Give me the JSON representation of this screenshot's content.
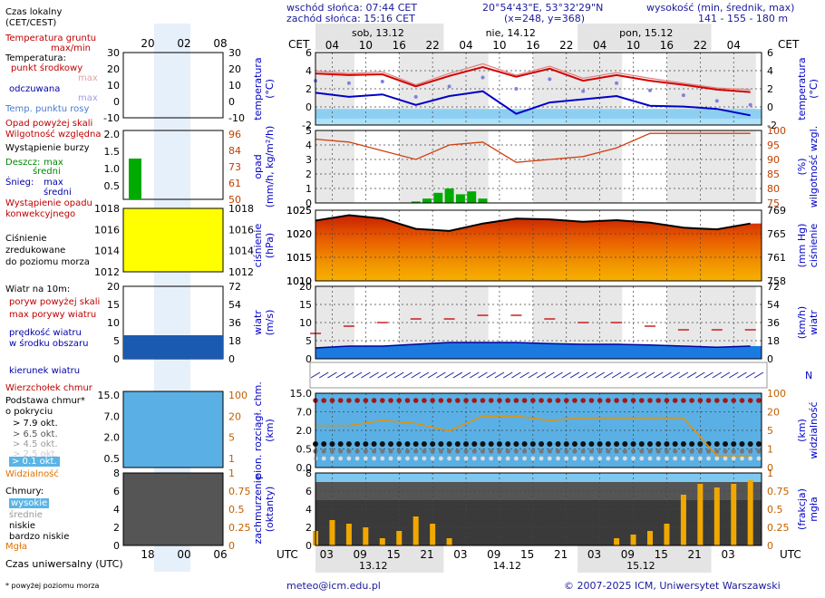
{
  "header": {
    "sunrise": "wschód słońca: 07:44 CET",
    "sunset": "zachód słońca: 15:16 CET",
    "coords": "20°54'43\"E, 53°32'29\"N",
    "grid": "(x=248,  y=368)",
    "alt_title": "wysokość (min, średnik, max)",
    "alt_values": "141 - 155 - 180 m",
    "tz_left": "CET",
    "tz_right": "CET",
    "utc_left": "UTC",
    "utc_right": "UTC"
  },
  "days_top": [
    "sob, 13.12",
    "nie, 14.12",
    "pon, 15.12"
  ],
  "days_bottom": [
    "13.12",
    "14.12",
    "15.12"
  ],
  "hours_top": [
    "04",
    "10",
    "16",
    "22",
    "04",
    "10",
    "16",
    "22",
    "04",
    "10",
    "16",
    "22",
    "04"
  ],
  "hours_bottom": [
    "03",
    "09",
    "15",
    "21",
    "03",
    "09",
    "15",
    "21",
    "03",
    "09",
    "15",
    "21",
    "03"
  ],
  "legend": {
    "local_time": "Czas lokalny\n(CET/CEST)",
    "local_ticks": [
      "20",
      "02",
      "08"
    ],
    "utc_label": "Czas uniwersalny (UTC)",
    "utc_ticks": [
      "18",
      "00",
      "06"
    ],
    "footnote": "* powyżej poziomu morza",
    "ground_temp": "Temperatura gruntu",
    "ground_temp2": "max/min",
    "temp_label": "Temperatura:",
    "temp_mid": "punkt środkowy",
    "temp_max": "max",
    "temp_min": "min",
    "apparent": "odczuwana",
    "app_max": "max",
    "app_min": "min",
    "dew": "Temp. punktu rosy",
    "precip_over": "Opad powyżej skali",
    "humidity": "Wilgotność względna",
    "storm": "Wystąpienie burzy",
    "rain": "Deszcz:",
    "rain_max": "max",
    "rain_avg": "średni",
    "snow": "Śnieg:",
    "snow_max": "max",
    "snow_avg": "średni",
    "precip_conv": "Wystąpienie opadu\nkonwekcyjnego",
    "pressure": "Ciśnienie\nzredukowane\ndo poziomu morza",
    "wind10": "Wiatr na 10m:",
    "gust_over": "poryw powyżej skali",
    "gust_max": "max porywy wiatru",
    "wind_speed": "prędkość wiatru\nw środku obszaru",
    "wind_dir": "kierunek wiatru",
    "cloud_top": "Wierzchołek chmur",
    "cloud_base": "Podstawa chmur*\no pokryciu",
    "okt79": "> 7.9 okt.",
    "okt65": "> 6.5 okt.",
    "okt45": "> 4.5 okt.",
    "okt25": "> 2.5 okt.",
    "okt01": "> 0.1 okt.",
    "visibility": "Widzialność",
    "clouds": "Chmury:",
    "high": "wysokie",
    "mid": "średnie",
    "low": "niskie",
    "vlow": "bardzo niskie",
    "fog": "Mgła"
  },
  "panels": {
    "temp": {
      "ylabel_left": "temperatura\n(°C)",
      "ylabel_right": "temperatura\n(°C)",
      "ticks": [
        "6",
        "4",
        "2",
        "0",
        "-2"
      ]
    },
    "precip": {
      "ylabel_left": "opad\n(mm/h, kg/m²/h)",
      "ylabel_right": "(%)\nwilgotność wzgl.",
      "ticks_left": [
        "5",
        "4",
        "3",
        "2",
        "1",
        "0"
      ],
      "ticks_right": [
        "100",
        "95",
        "90",
        "85",
        "80",
        "75"
      ]
    },
    "pressure": {
      "ylabel_left": "ciśnienie\n(hPa)",
      "ylabel_right": "(mm Hg)\nciśnienie",
      "ticks_left": [
        "1025",
        "1020",
        "1015",
        "1010"
      ],
      "ticks_right": [
        "769",
        "765",
        "761",
        "758"
      ]
    },
    "wind": {
      "ylabel_left": "wiatr\n(m/s)",
      "ylabel_right": "(km/h)\nwiatr",
      "ticks_left": [
        "20",
        "15",
        "10",
        "5",
        "0"
      ],
      "ticks_right": [
        "72",
        "54",
        "36",
        "18",
        "0"
      ]
    },
    "clouds": {
      "ylabel_left": "pion. rozciągł. chm.\n(km)",
      "ylabel_right": "(km)\nwidzialność",
      "ticks_left": [
        "15.0",
        "7.0",
        "2.0",
        "0.5",
        "0.0"
      ],
      "ticks_right": [
        "100",
        "20",
        "5",
        "1",
        "0"
      ]
    },
    "cover": {
      "ylabel_left": "zachmurzenie\n(oktanty)",
      "ylabel_right": "(frakcja)\nmgła",
      "ticks_left": [
        "8",
        "6",
        "4",
        "2",
        "0"
      ],
      "ticks_right": [
        "1",
        "0.75",
        "0.5",
        "0.25",
        "0"
      ]
    }
  },
  "legend_panel_ticks": {
    "temp_left": [
      "30",
      "20",
      "10",
      "0",
      "-10"
    ],
    "temp_right": [
      "30",
      "20",
      "10",
      "0",
      "-10"
    ],
    "precip_left": [
      "2.0",
      "1.5",
      "1.0",
      "0.5"
    ],
    "precip_right": [
      "96",
      "84",
      "73",
      "61",
      "50"
    ],
    "press_left": [
      "1018",
      "1016",
      "1014",
      "1012"
    ],
    "press_right": [
      "1018",
      "1016",
      "1014",
      "1012"
    ],
    "wind_left": [
      "20",
      "15",
      "10",
      "5",
      "0"
    ],
    "wind_right": [
      "72",
      "54",
      "36",
      "18",
      "0"
    ],
    "cloud_left": [
      "15.0",
      "7.0",
      "2.0",
      "0.5"
    ],
    "cloud_right": [
      "100",
      "20",
      "5",
      "1"
    ],
    "cover_left": [
      "8",
      "6",
      "4",
      "2",
      "0"
    ],
    "cover_right": [
      "1",
      "0.75",
      "0.5",
      "0.25",
      "0"
    ]
  },
  "footer": {
    "email": "meteo@icm.edu.pl",
    "copyright": "© 2007-2025 ICM, Uniwersytet Warszawski"
  },
  "colors": {
    "red": "#d40000",
    "blue": "#0000c8",
    "green": "#00aa00",
    "orange": "#e89000",
    "sky": "#7cc8f0",
    "dark": "#333333"
  },
  "chart_data": [
    {
      "type": "line",
      "title": "temperatura",
      "ylabel": "(°C)",
      "ylim": [
        -2,
        7
      ],
      "x_hours": [
        0,
        6,
        12,
        18,
        24,
        30,
        36,
        42,
        48,
        54,
        60,
        66,
        72,
        78
      ],
      "series": [
        {
          "name": "max",
          "values": [
            4.7,
            4.4,
            4.6,
            3.0,
            4.4,
            5.6,
            4.2,
            5.3,
            3.8,
            4.5,
            3.8,
            3.2,
            2.6,
            2.4
          ]
        },
        {
          "name": "punkt środkowy",
          "values": [
            4.4,
            4.2,
            4.3,
            2.8,
            4.1,
            5.2,
            4.0,
            5.0,
            3.5,
            4.2,
            3.5,
            3.0,
            2.4,
            2.1
          ]
        },
        {
          "name": "odczuwana",
          "values": [
            3.5,
            3.2,
            3.4,
            1.5,
            2.8,
            3.9,
            2.5,
            3.7,
            2.2,
            3.2,
            2.3,
            1.7,
            1.0,
            0.5
          ]
        },
        {
          "name": "Temp. punktu rosy",
          "values": [
            2.0,
            1.5,
            1.8,
            0.5,
            1.6,
            2.2,
            -0.6,
            0.8,
            1.2,
            1.6,
            0.4,
            0.3,
            0.0,
            -0.8
          ]
        }
      ]
    },
    {
      "type": "line",
      "title": "wilgotność względna",
      "ylabel": "(%)",
      "ylim": [
        75,
        100
      ],
      "x_hours": [
        0,
        6,
        12,
        18,
        24,
        30,
        36,
        42,
        48,
        54,
        60,
        66,
        72,
        78
      ],
      "values": [
        97,
        96,
        93,
        90,
        95,
        96,
        89,
        90,
        91,
        94,
        99,
        99,
        99,
        99
      ]
    },
    {
      "type": "bar",
      "title": "opad",
      "ylabel": "(mm/h)",
      "ylim": [
        0,
        5
      ],
      "x_hours": [
        18,
        20,
        22,
        24,
        26,
        28,
        30
      ],
      "values": [
        0.1,
        0.3,
        0.7,
        1.0,
        0.6,
        0.8,
        0.3
      ]
    },
    {
      "type": "line",
      "title": "ciśnienie",
      "ylabel": "(hPa)",
      "ylim": [
        1010,
        1027
      ],
      "x_hours": [
        0,
        6,
        12,
        18,
        24,
        30,
        36,
        42,
        48,
        54,
        60,
        66,
        72,
        78
      ],
      "values": [
        1024.5,
        1025.8,
        1025.0,
        1022.5,
        1022.0,
        1023.8,
        1025.0,
        1024.8,
        1024.2,
        1024.6,
        1024.0,
        1022.8,
        1022.4,
        1023.8
      ]
    },
    {
      "type": "line",
      "title": "wiatr",
      "ylabel": "(m/s)",
      "ylim": [
        0,
        20
      ],
      "x_hours": [
        0,
        6,
        12,
        18,
        24,
        30,
        36,
        42,
        48,
        54,
        60,
        66,
        72,
        78
      ],
      "series": [
        {
          "name": "max porywy wiatru",
          "values": [
            7,
            9,
            10,
            11,
            11,
            12,
            12,
            11,
            10,
            10,
            9,
            8,
            8,
            8
          ]
        },
        {
          "name": "prędkość wiatru",
          "values": [
            3,
            3.5,
            3.5,
            4,
            4.5,
            4.5,
            4.5,
            4.2,
            4,
            4,
            3.8,
            3.5,
            3.2,
            3.5
          ]
        }
      ]
    },
    {
      "type": "line",
      "title": "widzialność",
      "ylabel": "(km)",
      "x_hours": [
        0,
        6,
        12,
        18,
        24,
        30,
        36,
        42,
        48,
        54,
        60,
        66,
        72,
        78
      ],
      "values": [
        5,
        5,
        8,
        6,
        3,
        12,
        12,
        8,
        10,
        10,
        10,
        10,
        0.3,
        0.3
      ]
    },
    {
      "type": "bar",
      "title": "mgła",
      "ylabel": "(frakcja)",
      "ylim": [
        0,
        1
      ],
      "x_hours": [
        0,
        3,
        6,
        9,
        12,
        15,
        18,
        21,
        24,
        54,
        57,
        60,
        63,
        66,
        69,
        72,
        75,
        78
      ],
      "values": [
        0.2,
        0.35,
        0.3,
        0.25,
        0.1,
        0.2,
        0.4,
        0.3,
        0.1,
        0.1,
        0.15,
        0.2,
        0.3,
        0.7,
        0.85,
        0.8,
        0.85,
        0.9
      ]
    }
  ]
}
